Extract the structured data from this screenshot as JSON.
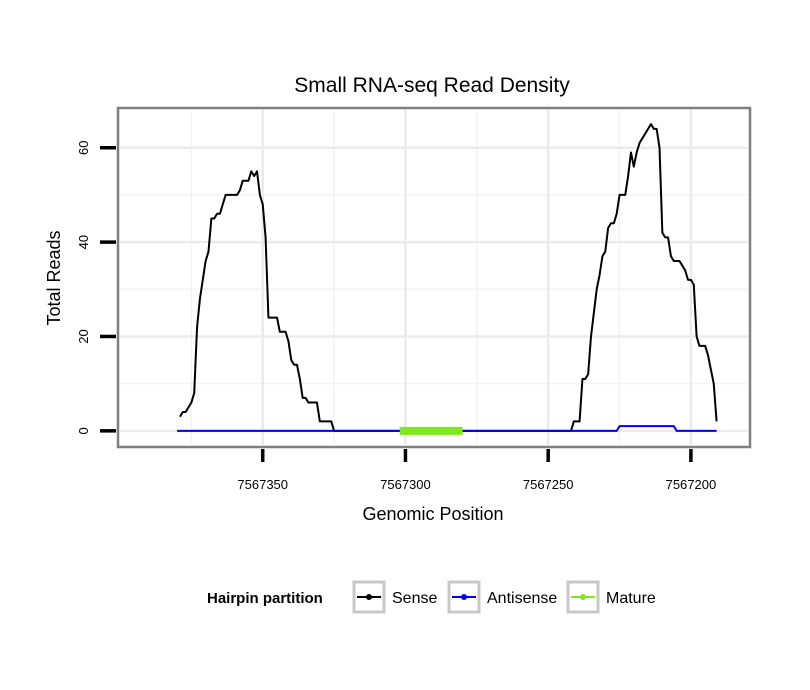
{
  "chart_data": {
    "type": "line",
    "title": "Small RNA-seq Read Density",
    "xlabel": "Genomic Position",
    "ylabel": "Total Reads",
    "x_reversed": true,
    "xlim": [
      7567400,
      7567180
    ],
    "ylim": [
      -3,
      68
    ],
    "x_ticks": [
      7567350,
      7567300,
      7567250,
      7567200
    ],
    "x_tick_labels": [
      "7567350",
      "7567300",
      "7567250",
      "7567200"
    ],
    "y_ticks": [
      0,
      20,
      40,
      60
    ],
    "y_tick_labels": [
      "0",
      "20",
      "40",
      "60"
    ],
    "grid": true,
    "legend": {
      "title": "Hairpin partition",
      "position": "bottom",
      "entries": [
        {
          "name": "Sense",
          "color": "#000000"
        },
        {
          "name": "Antisense",
          "color": "#0000ee"
        },
        {
          "name": "Mature",
          "color": "#7ee81a"
        }
      ]
    },
    "series": [
      {
        "name": "Sense",
        "color": "#000000",
        "points": [
          [
            7567379,
            3
          ],
          [
            7567378,
            4
          ],
          [
            7567377,
            4
          ],
          [
            7567376,
            5
          ],
          [
            7567375,
            6
          ],
          [
            7567374,
            8
          ],
          [
            7567373,
            22
          ],
          [
            7567372,
            28
          ],
          [
            7567371,
            32
          ],
          [
            7567370,
            36
          ],
          [
            7567369,
            38
          ],
          [
            7567368,
            45
          ],
          [
            7567367,
            45
          ],
          [
            7567366,
            46
          ],
          [
            7567365,
            46
          ],
          [
            7567364,
            48
          ],
          [
            7567363,
            50
          ],
          [
            7567362,
            50
          ],
          [
            7567361,
            50
          ],
          [
            7567360,
            50
          ],
          [
            7567359,
            50
          ],
          [
            7567358,
            51
          ],
          [
            7567357,
            53
          ],
          [
            7567356,
            53
          ],
          [
            7567355,
            53
          ],
          [
            7567354,
            55
          ],
          [
            7567353,
            54
          ],
          [
            7567352,
            55
          ],
          [
            7567351,
            50
          ],
          [
            7567350,
            48
          ],
          [
            7567349,
            41
          ],
          [
            7567348,
            24
          ],
          [
            7567347,
            24
          ],
          [
            7567346,
            24
          ],
          [
            7567345,
            24
          ],
          [
            7567344,
            21
          ],
          [
            7567343,
            21
          ],
          [
            7567342,
            21
          ],
          [
            7567341,
            19
          ],
          [
            7567340,
            15
          ],
          [
            7567339,
            14
          ],
          [
            7567338,
            14
          ],
          [
            7567337,
            11
          ],
          [
            7567336,
            7
          ],
          [
            7567335,
            7
          ],
          [
            7567334,
            6
          ],
          [
            7567333,
            6
          ],
          [
            7567332,
            6
          ],
          [
            7567331,
            6
          ],
          [
            7567330,
            2
          ],
          [
            7567329,
            2
          ],
          [
            7567328,
            2
          ],
          [
            7567327,
            2
          ],
          [
            7567326,
            2
          ],
          [
            7567325,
            0
          ],
          [
            7567320,
            0
          ],
          [
            7567300,
            0
          ],
          [
            7567280,
            0
          ],
          [
            7567260,
            0
          ],
          [
            7567242,
            0
          ],
          [
            7567241,
            2
          ],
          [
            7567240,
            2
          ],
          [
            7567239,
            2
          ],
          [
            7567238,
            11
          ],
          [
            7567237,
            11
          ],
          [
            7567236,
            12
          ],
          [
            7567235,
            20
          ],
          [
            7567234,
            25
          ],
          [
            7567233,
            30
          ],
          [
            7567232,
            33
          ],
          [
            7567231,
            37
          ],
          [
            7567230,
            38
          ],
          [
            7567229,
            43
          ],
          [
            7567228,
            44
          ],
          [
            7567227,
            44
          ],
          [
            7567226,
            46
          ],
          [
            7567225,
            50
          ],
          [
            7567224,
            50
          ],
          [
            7567223,
            50
          ],
          [
            7567222,
            54
          ],
          [
            7567221,
            59
          ],
          [
            7567220,
            56
          ],
          [
            7567219,
            59
          ],
          [
            7567218,
            61
          ],
          [
            7567217,
            62
          ],
          [
            7567216,
            63
          ],
          [
            7567215,
            64
          ],
          [
            7567214,
            65
          ],
          [
            7567213,
            64
          ],
          [
            7567212,
            64
          ],
          [
            7567211,
            60
          ],
          [
            7567210,
            42
          ],
          [
            7567209,
            41
          ],
          [
            7567208,
            41
          ],
          [
            7567207,
            37
          ],
          [
            7567206,
            36
          ],
          [
            7567205,
            36
          ],
          [
            7567204,
            36
          ],
          [
            7567203,
            35
          ],
          [
            7567202,
            34
          ],
          [
            7567201,
            32
          ],
          [
            7567200,
            32
          ],
          [
            7567199,
            31
          ],
          [
            7567198,
            20
          ],
          [
            7567197,
            18
          ],
          [
            7567196,
            18
          ],
          [
            7567195,
            18
          ],
          [
            7567194,
            16
          ],
          [
            7567193,
            13
          ],
          [
            7567192,
            10
          ],
          [
            7567191,
            2
          ]
        ]
      },
      {
        "name": "Antisense",
        "color": "#0000ee",
        "points": [
          [
            7567380,
            0
          ],
          [
            7567325,
            0
          ],
          [
            7567240,
            0
          ],
          [
            7567226,
            0
          ],
          [
            7567225,
            1
          ],
          [
            7567220,
            1
          ],
          [
            7567210,
            1
          ],
          [
            7567206,
            1
          ],
          [
            7567205,
            0
          ],
          [
            7567191,
            0
          ]
        ]
      },
      {
        "name": "Mature",
        "color": "#7ee81a",
        "points": [
          [
            7567302,
            0
          ],
          [
            7567280,
            0
          ]
        ]
      }
    ]
  }
}
